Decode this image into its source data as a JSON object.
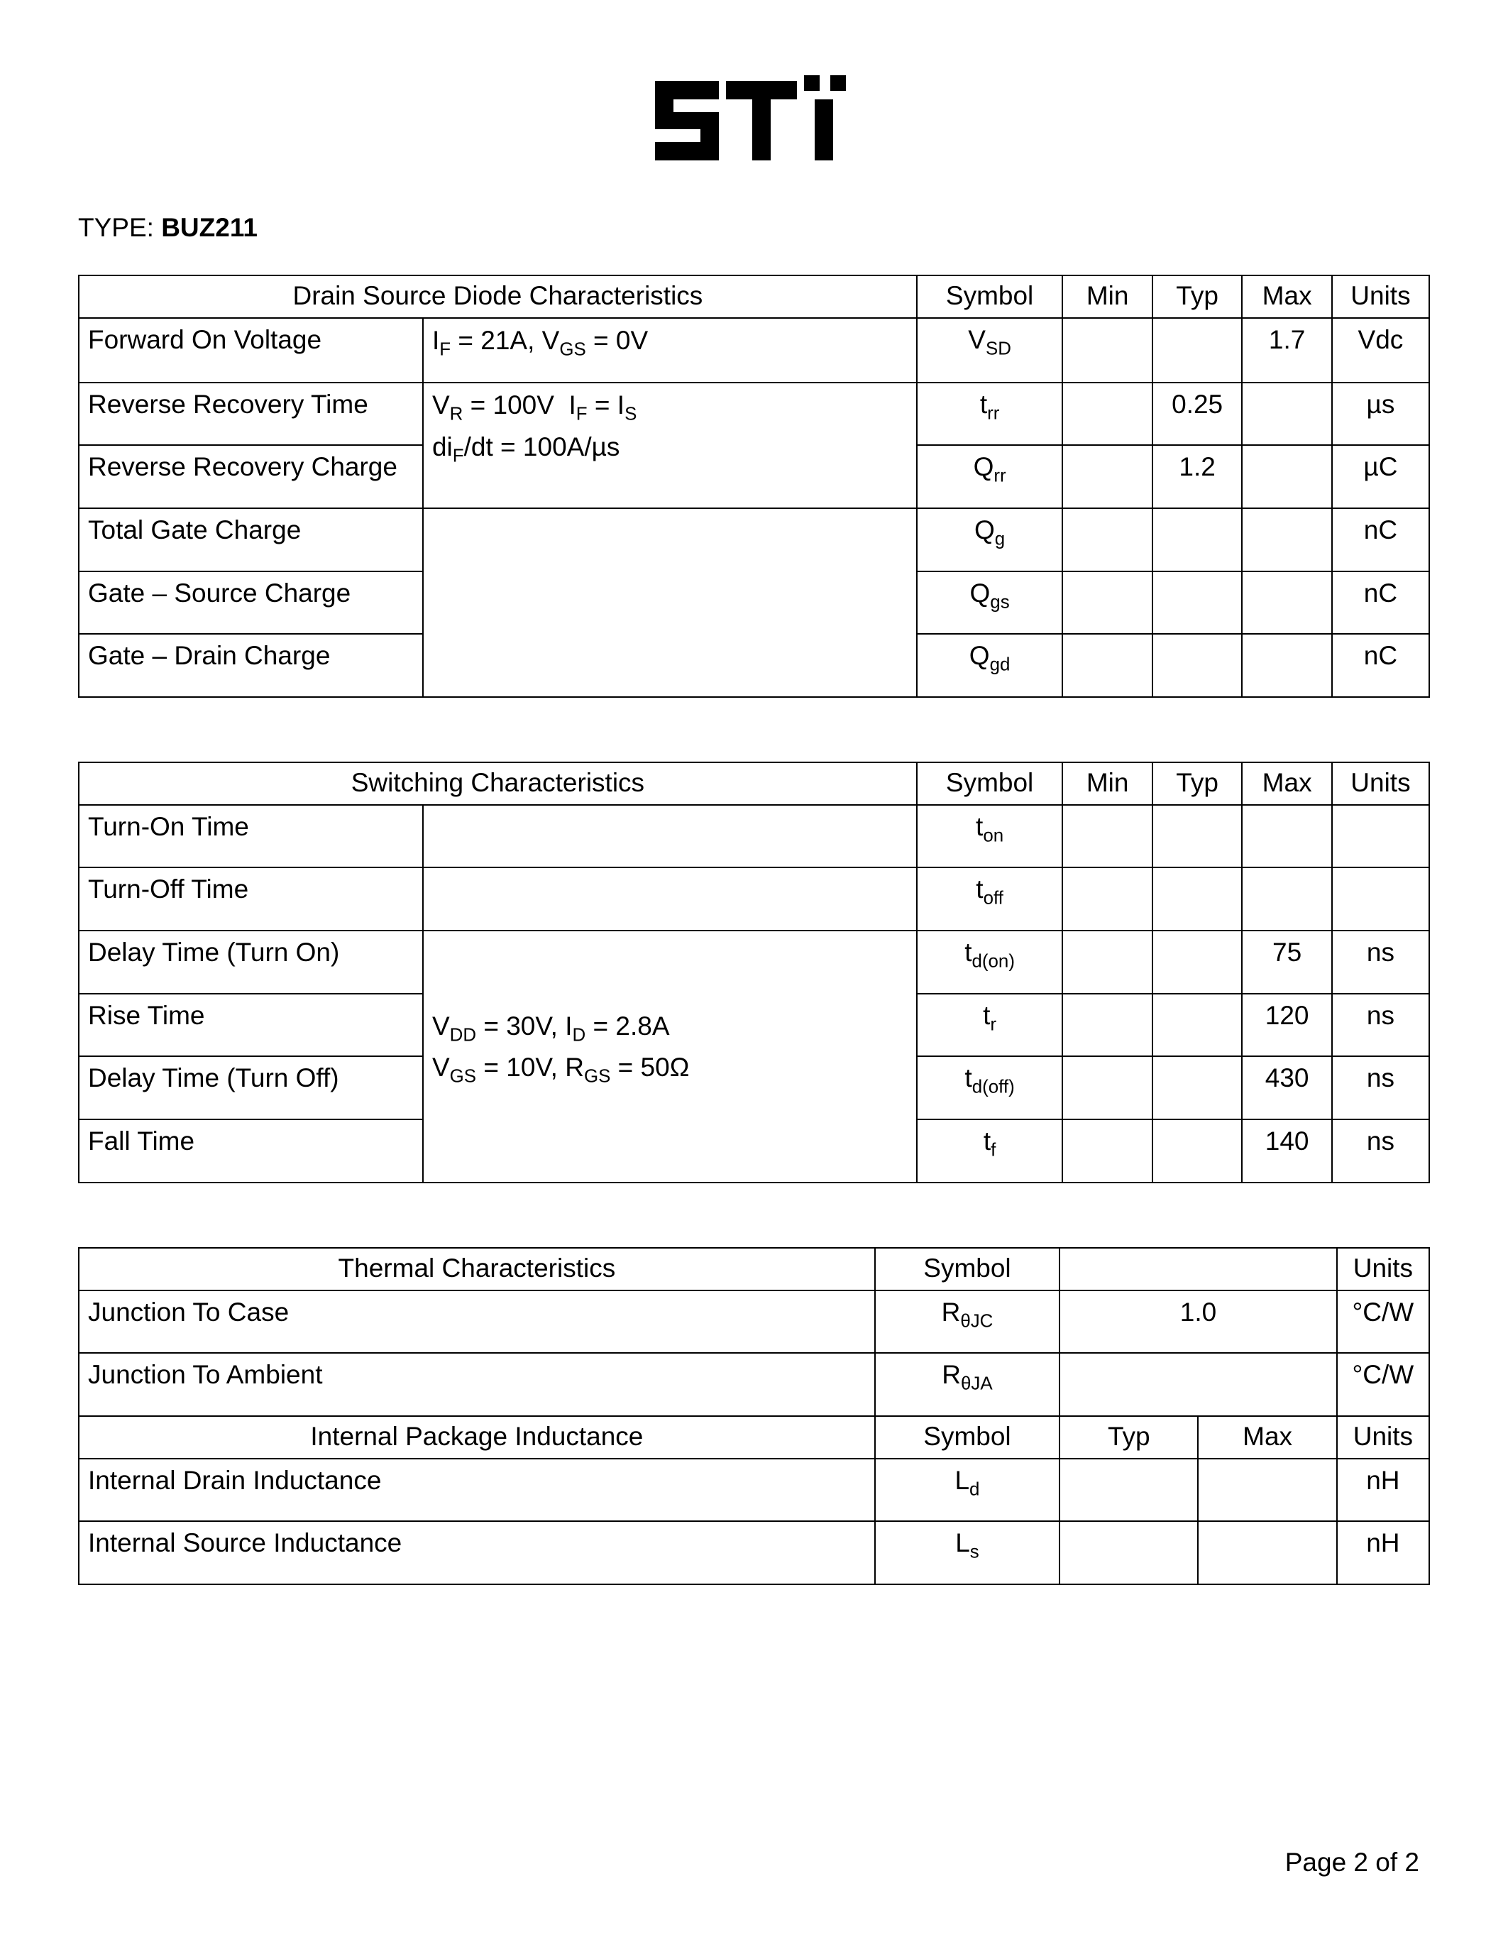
{
  "logo_alt": "STi",
  "type_label": "TYPE: ",
  "type_value": "BUZ211",
  "page_footer": "Page 2 of 2",
  "colors": {
    "text": "#000000",
    "bg": "#ffffff",
    "border": "#000000"
  },
  "tables": {
    "diode": {
      "title": "Drain Source Diode Characteristics",
      "cols": [
        "Symbol",
        "Min",
        "Typ",
        "Max",
        "Units"
      ],
      "rows": [
        {
          "param": "Forward On Voltage",
          "cond_html": "I<sub>F</sub> = 21A, V<sub>GS</sub> = 0V",
          "symbol_html": "V<sub>SD</sub>",
          "min": "",
          "typ": "",
          "max": "1.7",
          "units": "Vdc"
        },
        {
          "param": "Reverse Recovery Time",
          "cond_html": "",
          "symbol_html": "t<sub>rr</sub>",
          "min": "",
          "typ": "0.25",
          "max": "",
          "units": "µs"
        },
        {
          "param": "Reverse Recovery Charge",
          "cond_html": "",
          "symbol_html": "Q<sub>rr</sub>",
          "min": "",
          "typ": "1.2",
          "max": "",
          "units": "µC"
        },
        {
          "param": "Total Gate Charge",
          "cond_html": "",
          "symbol_html": "Q<sub>g</sub>",
          "min": "",
          "typ": "",
          "max": "",
          "units": "nC"
        },
        {
          "param": "Gate – Source Charge",
          "cond_html": "",
          "symbol_html": "Q<sub>gs</sub>",
          "min": "",
          "typ": "",
          "max": "",
          "units": "nC"
        },
        {
          "param": "Gate – Drain Charge",
          "cond_html": "",
          "symbol_html": "Q<sub>gd</sub>",
          "min": "",
          "typ": "",
          "max": "",
          "units": "nC"
        }
      ],
      "cond_merged_2_3": "V<sub>R</sub> = 100V&nbsp;&nbsp;I<sub>F</sub> = I<sub>S</sub><br>di<sub>F</sub>/dt = 100A/µs"
    },
    "switching": {
      "title": "Switching Characteristics",
      "cols": [
        "Symbol",
        "Min",
        "Typ",
        "Max",
        "Units"
      ],
      "rows": [
        {
          "param": "Turn-On Time",
          "symbol_html": "t<sub>on</sub>",
          "min": "",
          "typ": "",
          "max": "",
          "units": ""
        },
        {
          "param": "Turn-Off Time",
          "symbol_html": "t<sub>off</sub>",
          "min": "",
          "typ": "",
          "max": "",
          "units": ""
        },
        {
          "param": "Delay Time (Turn On)",
          "symbol_html": "t<sub>d(on)</sub>",
          "min": "",
          "typ": "",
          "max": "75",
          "units": "ns"
        },
        {
          "param": "Rise Time",
          "symbol_html": "t<sub>r</sub>",
          "min": "",
          "typ": "",
          "max": "120",
          "units": "ns"
        },
        {
          "param": "Delay Time (Turn Off)",
          "symbol_html": "t<sub>d(off)</sub>",
          "min": "",
          "typ": "",
          "max": "430",
          "units": "ns"
        },
        {
          "param": "Fall Time",
          "symbol_html": "t<sub>f</sub>",
          "min": "",
          "typ": "",
          "max": "140",
          "units": "ns"
        }
      ],
      "cond_merged_3_6": "V<sub>DD</sub> = 30V, I<sub>D</sub> = 2.8A<br>V<sub>GS</sub> = 10V, R<sub>GS</sub> = 50Ω"
    },
    "thermal": {
      "title": "Thermal Characteristics",
      "title2": "Internal Package Inductance",
      "cols1": [
        "Symbol",
        "",
        "Units"
      ],
      "cols2": [
        "Symbol",
        "Typ",
        "Max",
        "Units"
      ],
      "rows1": [
        {
          "param": "Junction To Case",
          "symbol_html": "R<sub>θJC</sub>",
          "val": "1.0",
          "units": "°C/W"
        },
        {
          "param": "Junction To Ambient",
          "symbol_html": "R<sub>θJA</sub>",
          "val": "",
          "units": "°C/W"
        }
      ],
      "rows2": [
        {
          "param": "Internal Drain Inductance",
          "symbol_html": "L<sub>d</sub>",
          "typ": "",
          "max": "",
          "units": "nH"
        },
        {
          "param": "Internal Source Inductance",
          "symbol_html": "L<sub>s</sub>",
          "typ": "",
          "max": "",
          "units": "nH"
        }
      ]
    }
  }
}
